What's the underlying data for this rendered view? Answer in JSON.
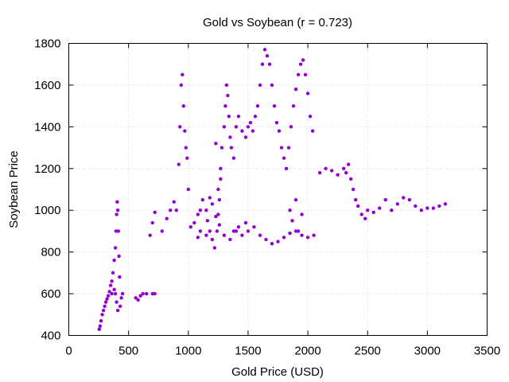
{
  "chart_data": {
    "type": "scatter",
    "title": "Gold vs Soybean (r = 0.723)",
    "xlabel": "Gold Price (USD)",
    "ylabel": "Soybean Price",
    "xlim": [
      0,
      3500
    ],
    "ylim": [
      400,
      1800
    ],
    "xticks": [
      0,
      500,
      1000,
      1500,
      2000,
      2500,
      3000,
      3500
    ],
    "yticks": [
      400,
      600,
      800,
      1000,
      1200,
      1400,
      1600,
      1800
    ],
    "grid": true,
    "legend": "none",
    "marker_color": "#9400d3",
    "series": [
      {
        "values": [
          [
            255,
            430
          ],
          [
            262,
            445
          ],
          [
            270,
            470
          ],
          [
            280,
            500
          ],
          [
            290,
            520
          ],
          [
            300,
            540
          ],
          [
            310,
            560
          ],
          [
            320,
            575
          ],
          [
            330,
            590
          ],
          [
            340,
            610
          ],
          [
            350,
            640
          ],
          [
            360,
            660
          ],
          [
            370,
            700
          ],
          [
            380,
            760
          ],
          [
            390,
            820
          ],
          [
            395,
            900
          ],
          [
            400,
            980
          ],
          [
            405,
            1040
          ],
          [
            410,
            1000
          ],
          [
            415,
            900
          ],
          [
            420,
            780
          ],
          [
            425,
            680
          ],
          [
            380,
            620
          ],
          [
            360,
            600
          ],
          [
            400,
            560
          ],
          [
            430,
            540
          ],
          [
            410,
            520
          ],
          [
            390,
            600
          ],
          [
            440,
            580
          ],
          [
            450,
            600
          ],
          [
            560,
            580
          ],
          [
            580,
            570
          ],
          [
            600,
            590
          ],
          [
            620,
            600
          ],
          [
            650,
            600
          ],
          [
            700,
            600
          ],
          [
            720,
            600
          ],
          [
            680,
            880
          ],
          [
            700,
            940
          ],
          [
            720,
            990
          ],
          [
            780,
            900
          ],
          [
            820,
            960
          ],
          [
            850,
            1000
          ],
          [
            880,
            1040
          ],
          [
            900,
            1000
          ],
          [
            920,
            1220
          ],
          [
            930,
            1400
          ],
          [
            940,
            1600
          ],
          [
            950,
            1650
          ],
          [
            960,
            1500
          ],
          [
            970,
            1380
          ],
          [
            980,
            1300
          ],
          [
            990,
            1250
          ],
          [
            1000,
            1100
          ],
          [
            1020,
            920
          ],
          [
            1050,
            940
          ],
          [
            1080,
            980
          ],
          [
            1100,
            1000
          ],
          [
            1120,
            1050
          ],
          [
            1150,
            1000
          ],
          [
            1160,
            950
          ],
          [
            1180,
            900
          ],
          [
            1200,
            860
          ],
          [
            1220,
            820
          ],
          [
            1240,
            900
          ],
          [
            1250,
            980
          ],
          [
            1260,
            1050
          ],
          [
            1270,
            1200
          ],
          [
            1280,
            1300
          ],
          [
            1300,
            1400
          ],
          [
            1310,
            1500
          ],
          [
            1320,
            1600
          ],
          [
            1330,
            1550
          ],
          [
            1340,
            1450
          ],
          [
            1350,
            1350
          ],
          [
            1360,
            1300
          ],
          [
            1380,
            1250
          ],
          [
            1400,
            1400
          ],
          [
            1420,
            1450
          ],
          [
            1450,
            1380
          ],
          [
            1480,
            1350
          ],
          [
            1500,
            1400
          ],
          [
            1520,
            1420
          ],
          [
            1540,
            1380
          ],
          [
            1560,
            1450
          ],
          [
            1580,
            1500
          ],
          [
            1600,
            1600
          ],
          [
            1620,
            1700
          ],
          [
            1640,
            1770
          ],
          [
            1660,
            1740
          ],
          [
            1680,
            1700
          ],
          [
            1700,
            1600
          ],
          [
            1720,
            1500
          ],
          [
            1740,
            1420
          ],
          [
            1760,
            1380
          ],
          [
            1780,
            1300
          ],
          [
            1800,
            1250
          ],
          [
            1820,
            1200
          ],
          [
            1840,
            1300
          ],
          [
            1860,
            1400
          ],
          [
            1880,
            1500
          ],
          [
            1900,
            1580
          ],
          [
            1920,
            1650
          ],
          [
            1940,
            1700
          ],
          [
            1960,
            1720
          ],
          [
            1980,
            1650
          ],
          [
            2000,
            1560
          ],
          [
            2020,
            1450
          ],
          [
            2040,
            1380
          ],
          [
            1400,
            900
          ],
          [
            1450,
            880
          ],
          [
            1500,
            900
          ],
          [
            1550,
            920
          ],
          [
            1600,
            880
          ],
          [
            1650,
            860
          ],
          [
            1700,
            840
          ],
          [
            1750,
            850
          ],
          [
            1800,
            870
          ],
          [
            1850,
            890
          ],
          [
            1900,
            900
          ],
          [
            1950,
            880
          ],
          [
            2000,
            870
          ],
          [
            2050,
            880
          ],
          [
            1300,
            880
          ],
          [
            1350,
            860
          ],
          [
            1380,
            900
          ],
          [
            1420,
            920
          ],
          [
            1480,
            940
          ],
          [
            2100,
            1180
          ],
          [
            2150,
            1200
          ],
          [
            2200,
            1190
          ],
          [
            2250,
            1170
          ],
          [
            2300,
            1200
          ],
          [
            2320,
            1180
          ],
          [
            2340,
            1220
          ],
          [
            2360,
            1150
          ],
          [
            2380,
            1100
          ],
          [
            2400,
            1050
          ],
          [
            2420,
            1020
          ],
          [
            2450,
            980
          ],
          [
            2480,
            960
          ],
          [
            2500,
            1000
          ],
          [
            2550,
            990
          ],
          [
            2600,
            1010
          ],
          [
            2650,
            1050
          ],
          [
            2700,
            1000
          ],
          [
            2750,
            1030
          ],
          [
            2800,
            1060
          ],
          [
            2850,
            1050
          ],
          [
            2900,
            1020
          ],
          [
            2950,
            1000
          ],
          [
            3000,
            1010
          ],
          [
            3050,
            1010
          ],
          [
            3100,
            1020
          ],
          [
            3150,
            1030
          ],
          [
            1850,
            1000
          ],
          [
            1870,
            950
          ],
          [
            1900,
            1050
          ],
          [
            1920,
            900
          ],
          [
            1950,
            980
          ],
          [
            1200,
            1030
          ],
          [
            1230,
            970
          ],
          [
            1260,
            930
          ],
          [
            1180,
            1060
          ],
          [
            1150,
            880
          ],
          [
            1100,
            900
          ],
          [
            1080,
            870
          ],
          [
            1250,
            1100
          ],
          [
            1270,
            1150
          ],
          [
            1230,
            1320
          ]
        ]
      }
    ]
  }
}
